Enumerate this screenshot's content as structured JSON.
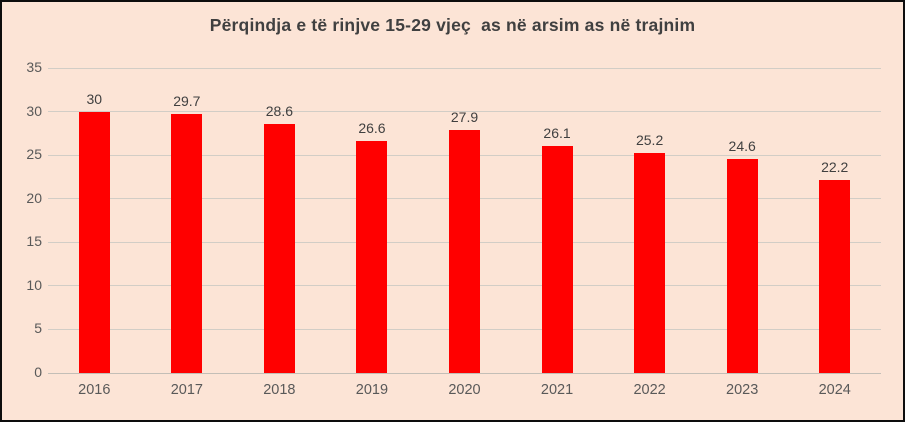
{
  "chart_data": {
    "type": "bar",
    "title": "Përqindja e të rinjve 15-29 vjeç  as në arsim as në trajnim",
    "categories": [
      "2016",
      "2017",
      "2018",
      "2019",
      "2020",
      "2021",
      "2022",
      "2023",
      "2024"
    ],
    "values": [
      30,
      29.7,
      28.6,
      26.6,
      27.9,
      26.1,
      25.2,
      24.6,
      22.2
    ],
    "data_labels": [
      "30",
      "29.7",
      "28.6",
      "26.6",
      "27.9",
      "26.1",
      "25.2",
      "24.6",
      "22.2"
    ],
    "xlabel": "",
    "ylabel": "",
    "y_ticks": [
      0,
      5,
      10,
      15,
      20,
      25,
      30,
      35
    ],
    "ylim": [
      0,
      35
    ],
    "grid": true,
    "legend_position": "none",
    "colors": {
      "bar": "#ff0000",
      "plot_background": "#fce4d6",
      "title_text": "#404040",
      "axis_label_text": "#595959",
      "data_label_text": "#404040",
      "gridline": "#d2cdc6",
      "frame_border": "#0d0d0d"
    }
  }
}
